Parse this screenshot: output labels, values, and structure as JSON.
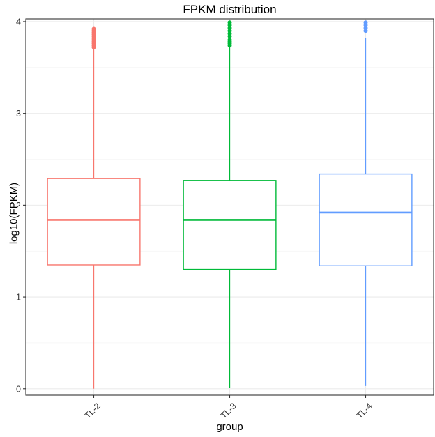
{
  "chart_data": {
    "type": "boxplot",
    "title": "FPKM distribution",
    "xlabel": "group",
    "ylabel": "log10(FPKM)",
    "ylim": [
      -0.07,
      4.03
    ],
    "yticks": [
      0,
      1,
      2,
      3,
      4
    ],
    "grid": true,
    "categories": [
      "TL-2",
      "TL-3",
      "TL-4"
    ],
    "series": [
      {
        "category": "TL-2",
        "color": "#F8766D",
        "min": 0.0,
        "q1": 1.35,
        "median": 1.84,
        "q3": 2.29,
        "max": 3.7,
        "outliers": [
          3.72,
          3.74,
          3.76,
          3.78,
          3.8,
          3.82,
          3.84,
          3.86,
          3.88,
          3.9,
          3.92
        ]
      },
      {
        "category": "TL-3",
        "color": "#00BA38",
        "min": 0.01,
        "q1": 1.3,
        "median": 1.84,
        "q3": 2.27,
        "max": 3.72,
        "outliers": [
          3.74,
          3.76,
          3.78,
          3.8,
          3.84,
          3.87,
          3.9,
          3.93,
          3.96,
          3.99
        ]
      },
      {
        "category": "TL-4",
        "color": "#619CFF",
        "min": 0.03,
        "q1": 1.34,
        "median": 1.92,
        "q3": 2.34,
        "max": 3.82,
        "outliers": [
          3.9,
          3.93,
          3.96,
          3.99
        ]
      }
    ]
  }
}
